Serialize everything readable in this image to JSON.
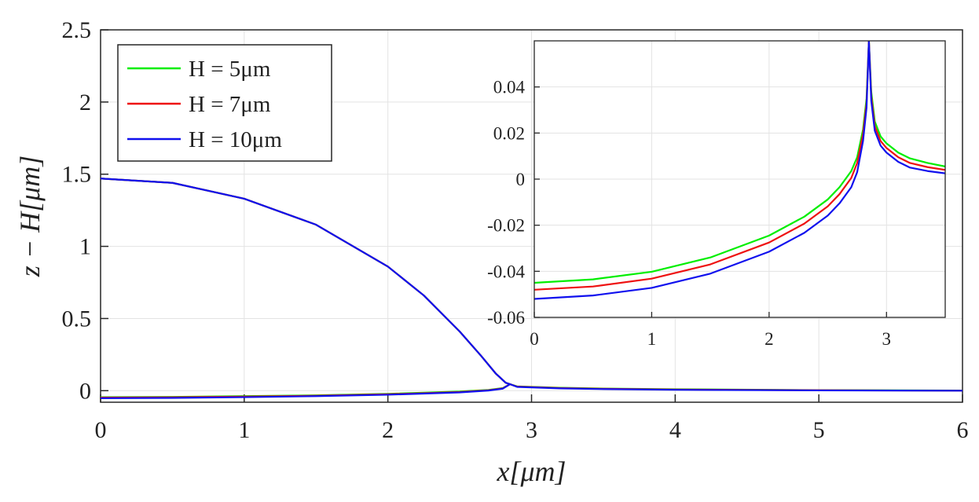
{
  "chart_data": [
    {
      "id": "main",
      "type": "line",
      "xlabel": "x[μm]",
      "ylabel": "z − H[μm]",
      "xlim": [
        0,
        6
      ],
      "ylim": [
        -0.08,
        2.5
      ],
      "xticks": [
        0,
        1,
        2,
        3,
        4,
        5,
        6
      ],
      "xtick_labels": [
        "0",
        "1",
        "2",
        "3",
        "4",
        "5",
        "6"
      ],
      "yticks": [
        0,
        0.5,
        1,
        1.5,
        2,
        2.5
      ],
      "ytick_labels": [
        "0",
        "0.5",
        "1",
        "1.5",
        "2",
        "2.5"
      ],
      "grid": true,
      "legend_position": "top-left",
      "series": [
        {
          "name": "H = 5μm",
          "color": "#00ee00",
          "branches": [
            {
              "x": [
                0,
                0.5,
                1,
                1.5,
                2,
                2.25,
                2.5,
                2.65,
                2.75,
                2.82,
                2.85
              ],
              "y": [
                1.47,
                1.44,
                1.33,
                1.15,
                0.86,
                0.66,
                0.41,
                0.24,
                0.12,
                0.055,
                0.045
              ]
            },
            {
              "x": [
                0,
                0.5,
                1,
                1.5,
                2,
                2.5,
                2.7,
                2.8,
                2.85,
                2.9,
                3.2,
                3.5,
                4,
                5,
                6
              ],
              "y": [
                -0.045,
                -0.043,
                -0.038,
                -0.032,
                -0.022,
                -0.006,
                0.005,
                0.018,
                0.045,
                0.03,
                0.02,
                0.015,
                0.01,
                0.004,
                0.001
              ]
            }
          ]
        },
        {
          "name": "H = 7μm",
          "color": "#ee1111",
          "branches": [
            {
              "x": [
                0,
                0.5,
                1,
                1.5,
                2,
                2.25,
                2.5,
                2.65,
                2.75,
                2.82,
                2.85
              ],
              "y": [
                1.47,
                1.44,
                1.33,
                1.15,
                0.86,
                0.66,
                0.41,
                0.24,
                0.12,
                0.055,
                0.045
              ]
            },
            {
              "x": [
                0,
                0.5,
                1,
                1.5,
                2,
                2.5,
                2.7,
                2.8,
                2.85,
                2.9,
                3.2,
                3.5,
                4,
                5,
                6
              ],
              "y": [
                -0.048,
                -0.046,
                -0.041,
                -0.035,
                -0.025,
                -0.009,
                0.003,
                0.016,
                0.045,
                0.028,
                0.018,
                0.013,
                0.008,
                0.003,
                0.0
              ]
            }
          ]
        },
        {
          "name": "H = 10μm",
          "color": "#1010ee",
          "branches": [
            {
              "x": [
                0,
                0.5,
                1,
                1.5,
                2,
                2.25,
                2.5,
                2.65,
                2.75,
                2.82,
                2.85
              ],
              "y": [
                1.47,
                1.44,
                1.33,
                1.15,
                0.86,
                0.66,
                0.41,
                0.24,
                0.12,
                0.055,
                0.045
              ]
            },
            {
              "x": [
                0,
                0.5,
                1,
                1.5,
                2,
                2.5,
                2.7,
                2.8,
                2.85,
                2.9,
                3.2,
                3.5,
                4,
                5,
                6
              ],
              "y": [
                -0.052,
                -0.05,
                -0.045,
                -0.038,
                -0.028,
                -0.012,
                0.001,
                0.014,
                0.045,
                0.026,
                0.016,
                0.011,
                0.006,
                0.002,
                0.0
              ]
            }
          ]
        }
      ]
    },
    {
      "id": "inset",
      "type": "line",
      "xlim": [
        0,
        3.5
      ],
      "ylim": [
        -0.06,
        0.06
      ],
      "xticks": [
        0,
        1,
        2,
        3
      ],
      "xtick_labels": [
        "0",
        "1",
        "2",
        "3"
      ],
      "yticks": [
        -0.06,
        -0.04,
        -0.02,
        0,
        0.02,
        0.04
      ],
      "ytick_labels": [
        "-0.06",
        "-0.04",
        "-0.02",
        "0",
        "0.02",
        "0.04"
      ],
      "grid": true,
      "series": [
        {
          "name": "H = 5μm",
          "color": "#00ee00",
          "x": [
            0,
            0.5,
            1,
            1.5,
            2,
            2.3,
            2.5,
            2.6,
            2.7,
            2.75,
            2.8,
            2.83,
            2.85,
            2.87,
            2.9,
            2.95,
            3.0,
            3.1,
            3.2,
            3.35,
            3.5
          ],
          "y": [
            -0.045,
            -0.0435,
            -0.0402,
            -0.034,
            -0.0245,
            -0.0163,
            -0.0088,
            -0.0035,
            0.0035,
            0.0095,
            0.0215,
            0.035,
            0.06,
            0.038,
            0.025,
            0.0185,
            0.0155,
            0.0115,
            0.009,
            0.007,
            0.0055
          ]
        },
        {
          "name": "H = 7μm",
          "color": "#ee1111",
          "x": [
            0,
            0.5,
            1,
            1.5,
            2,
            2.3,
            2.5,
            2.6,
            2.7,
            2.75,
            2.8,
            2.83,
            2.85,
            2.87,
            2.9,
            2.95,
            3.0,
            3.1,
            3.2,
            3.35,
            3.5
          ],
          "y": [
            -0.048,
            -0.0466,
            -0.0432,
            -0.037,
            -0.0275,
            -0.0193,
            -0.0118,
            -0.0065,
            0.0005,
            0.007,
            0.0195,
            0.033,
            0.06,
            0.036,
            0.023,
            0.0165,
            0.0135,
            0.0095,
            0.007,
            0.0052,
            0.004
          ]
        },
        {
          "name": "H = 10μm",
          "color": "#1010ee",
          "x": [
            0,
            0.5,
            1,
            1.5,
            2,
            2.3,
            2.5,
            2.6,
            2.7,
            2.75,
            2.8,
            2.83,
            2.85,
            2.87,
            2.9,
            2.95,
            3.0,
            3.1,
            3.2,
            3.35,
            3.5
          ],
          "y": [
            -0.052,
            -0.0505,
            -0.0472,
            -0.041,
            -0.0315,
            -0.0233,
            -0.0158,
            -0.0105,
            -0.0035,
            0.003,
            0.0165,
            0.031,
            0.06,
            0.034,
            0.021,
            0.0145,
            0.0115,
            0.0075,
            0.005,
            0.0035,
            0.0025
          ]
        }
      ]
    }
  ],
  "legend": {
    "items": [
      {
        "label": "H = 5μm",
        "color": "#00ee00"
      },
      {
        "label": "H = 7μm",
        "color": "#ee1111"
      },
      {
        "label": "H = 10μm",
        "color": "#1010ee"
      }
    ]
  },
  "colors": {
    "axis": "#262626",
    "grid": "#e3e3e3"
  }
}
